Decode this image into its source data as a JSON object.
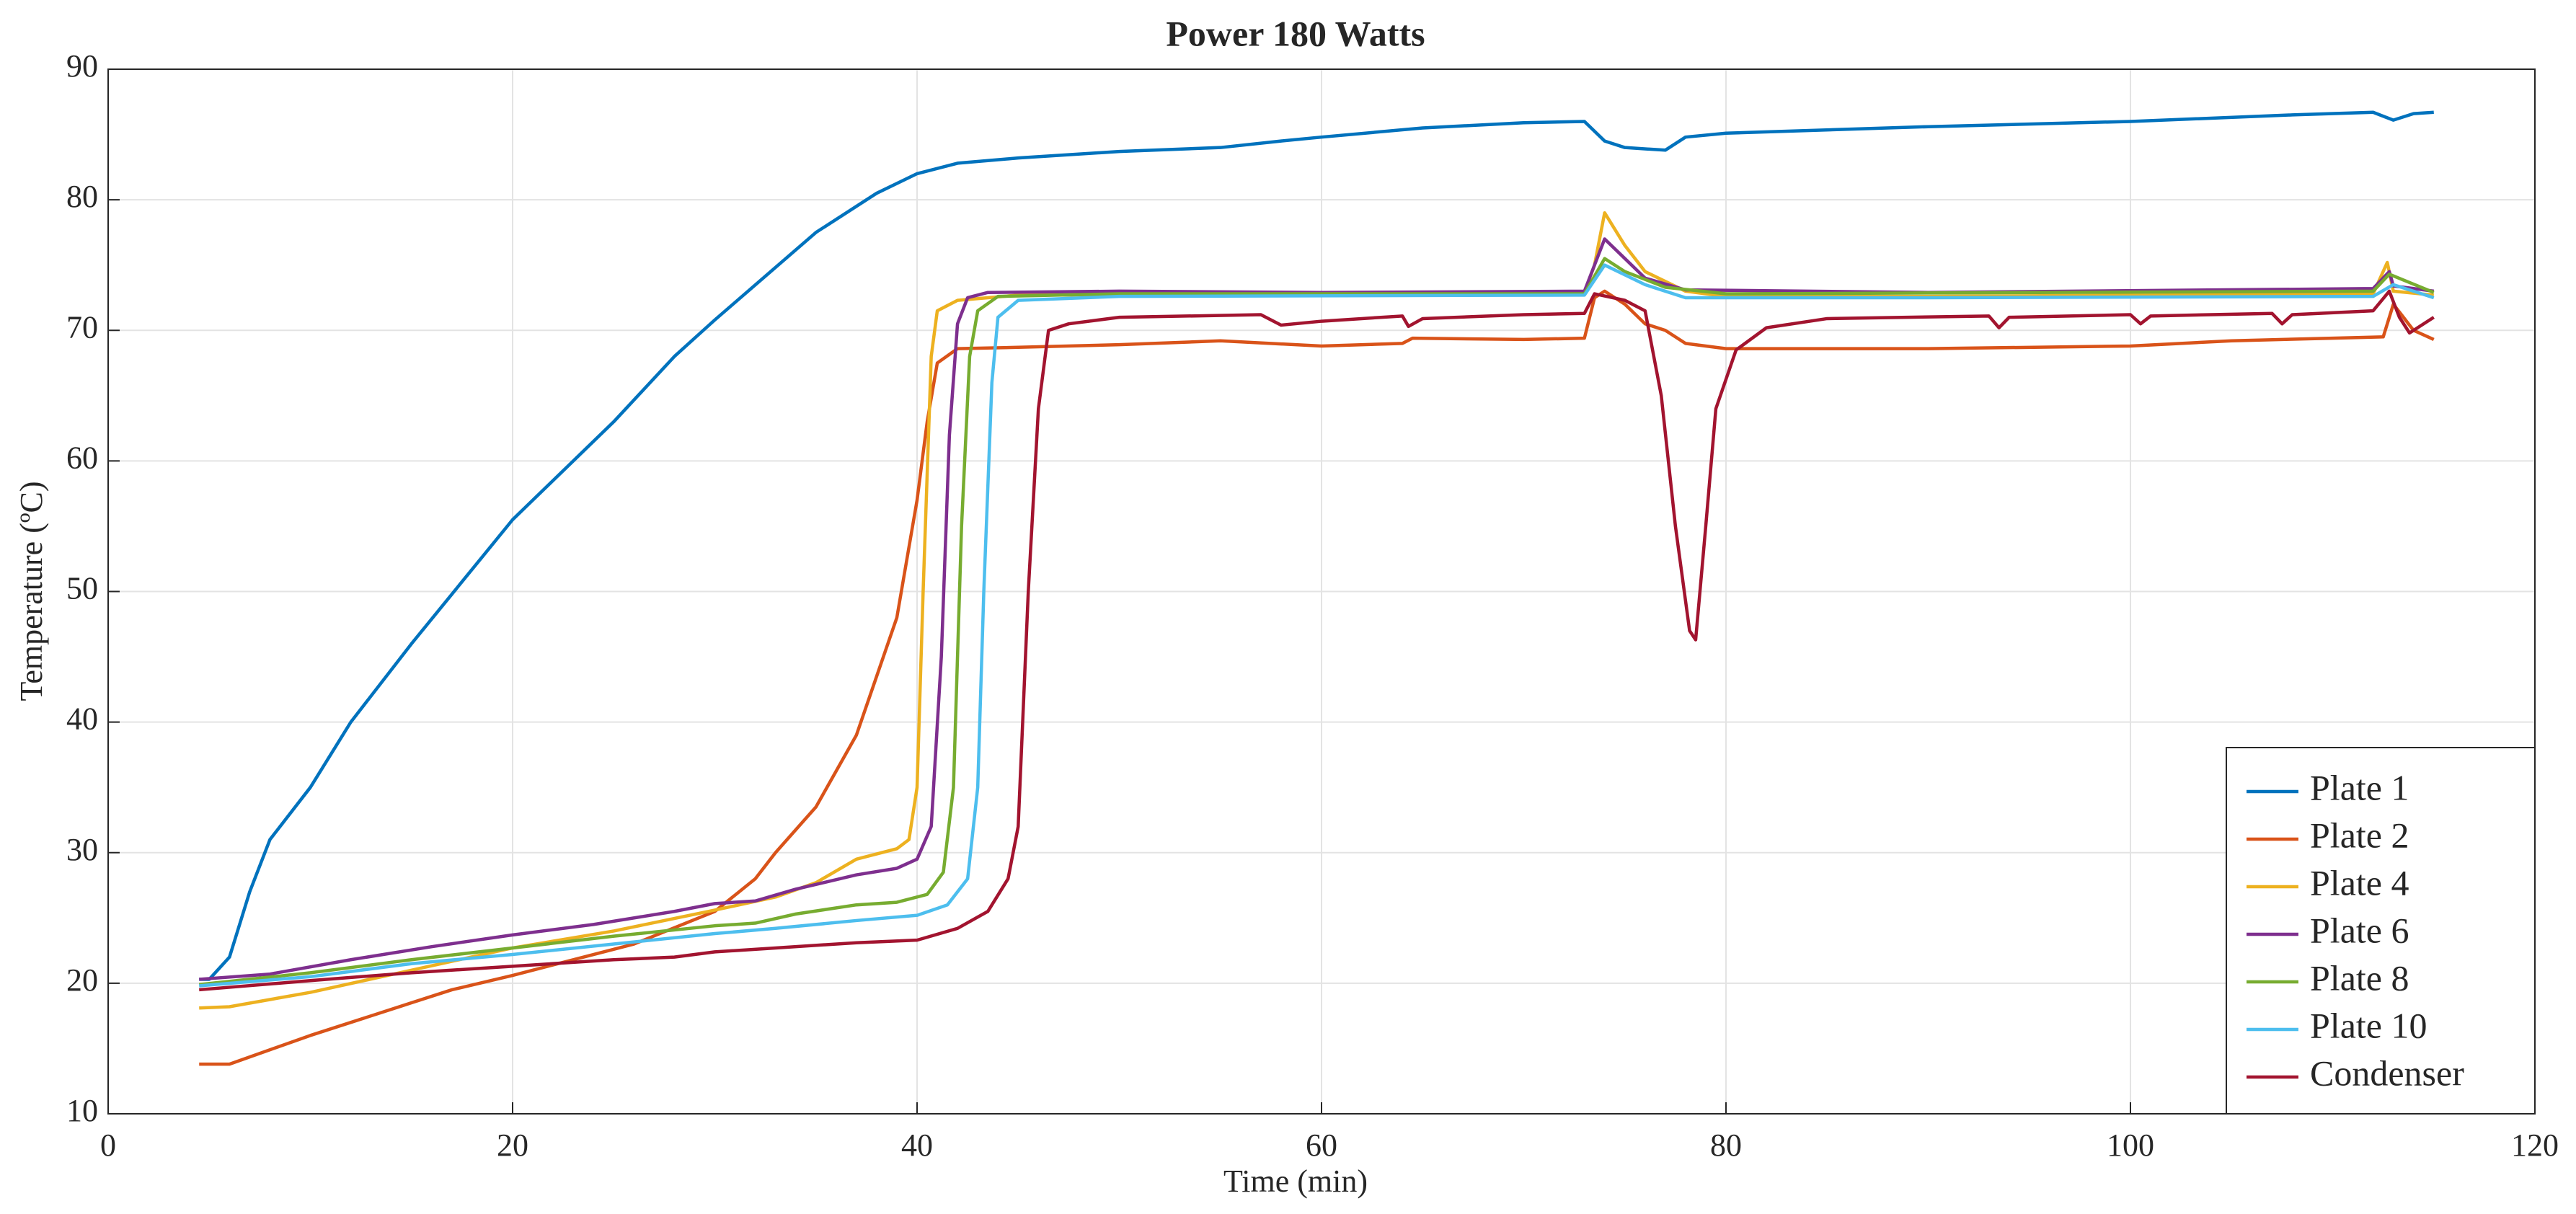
{
  "chart_data": {
    "type": "line",
    "title": "Power 180 Watts",
    "x_label": "Time (min)",
    "y_label": "Temperature (ºC)",
    "xlim": [
      0,
      120
    ],
    "xticks": [
      0,
      20,
      40,
      60,
      80,
      100,
      120
    ],
    "ylim": [
      10,
      90
    ],
    "yticks": [
      10,
      20,
      30,
      40,
      50,
      60,
      70,
      80,
      90
    ],
    "grid": true,
    "legend": "lower right",
    "series": [
      {
        "name": "Plate 1",
        "color": "#0072bd",
        "x": [
          4.5,
          5,
          6,
          7,
          8,
          10,
          12,
          15,
          20,
          25,
          28,
          30,
          35,
          38,
          40,
          42,
          45,
          50,
          55,
          58,
          60,
          65,
          70,
          73,
          74,
          75,
          77,
          78,
          80,
          90,
          100,
          108,
          112,
          113,
          114,
          115
        ],
        "values": [
          20.3,
          20.3,
          22,
          27,
          31,
          35,
          40,
          46,
          55.5,
          63,
          68,
          70.8,
          77.5,
          80.5,
          82,
          82.8,
          83.2,
          83.7,
          84,
          84.5,
          84.8,
          85.5,
          85.9,
          86,
          84.5,
          84,
          83.8,
          84.8,
          85.1,
          85.6,
          86,
          86.5,
          86.7,
          86.1,
          86.6,
          86.7
        ]
      },
      {
        "name": "Plate 2",
        "color": "#d95319",
        "x": [
          4.5,
          6,
          10,
          15,
          17,
          20,
          23,
          26,
          30,
          32,
          33,
          35,
          37,
          38,
          39,
          40,
          40.5,
          41,
          42,
          45,
          50,
          55,
          60,
          64,
          64.5,
          70,
          73,
          73.5,
          74,
          75,
          76,
          77,
          78,
          80,
          90,
          100,
          105,
          110,
          112.5,
          113,
          114,
          115
        ],
        "values": [
          13.8,
          13.8,
          16,
          18.5,
          19.5,
          20.6,
          21.8,
          23,
          25.5,
          28,
          30,
          33.5,
          39,
          43.5,
          48,
          57,
          63,
          67.5,
          68.6,
          68.7,
          68.9,
          69.2,
          68.8,
          69,
          69.4,
          69.3,
          69.4,
          72.5,
          73,
          72,
          70.5,
          70,
          69,
          68.6,
          68.6,
          68.8,
          69.2,
          69.4,
          69.5,
          72,
          70,
          69.3
        ]
      },
      {
        "name": "Plate 4",
        "color": "#edb120",
        "x": [
          4.5,
          6,
          10,
          15,
          20,
          25,
          30,
          33,
          35,
          37,
          39,
          39.6,
          40,
          40.3,
          40.7,
          41,
          42,
          45,
          60,
          73,
          73.5,
          74,
          75,
          76,
          78,
          80,
          90,
          112,
          112.7,
          113,
          115
        ],
        "values": [
          18.1,
          18.2,
          19.3,
          21,
          22.7,
          24,
          25.6,
          26.6,
          27.7,
          29.5,
          30.3,
          31,
          35,
          50,
          68,
          71.5,
          72.3,
          72.7,
          72.8,
          72.9,
          75,
          79,
          76.5,
          74.5,
          73,
          72.6,
          72.6,
          72.8,
          75.2,
          73,
          72.7
        ]
      },
      {
        "name": "Plate 6",
        "color": "#7e2f8e",
        "x": [
          4.5,
          8,
          12,
          16,
          20,
          24,
          28,
          30,
          32,
          34,
          37,
          39,
          40,
          40.7,
          41.2,
          41.6,
          42,
          42.5,
          43.5,
          50,
          60,
          73,
          74,
          75,
          76,
          78,
          90,
          112,
          112.8,
          113,
          115
        ],
        "values": [
          20.3,
          20.7,
          21.8,
          22.8,
          23.7,
          24.5,
          25.5,
          26.1,
          26.3,
          27.2,
          28.3,
          28.8,
          29.5,
          32,
          45,
          62,
          70.5,
          72.5,
          72.9,
          73,
          72.9,
          73,
          77,
          75.5,
          74,
          73.1,
          72.9,
          73.2,
          74.5,
          73.4,
          73
        ]
      },
      {
        "name": "Plate 8",
        "color": "#77ac30",
        "x": [
          4.5,
          10,
          15,
          20,
          25,
          30,
          32,
          34,
          37,
          39,
          40.5,
          41.3,
          41.8,
          42.2,
          42.6,
          43,
          44,
          50,
          73,
          74,
          75,
          77,
          80,
          112,
          112.8,
          115
        ],
        "values": [
          19.9,
          20.8,
          21.8,
          22.7,
          23.6,
          24.4,
          24.6,
          25.3,
          26,
          26.2,
          26.8,
          28.5,
          35,
          55,
          68,
          71.5,
          72.6,
          72.8,
          72.8,
          75.5,
          74.5,
          73.3,
          72.8,
          73,
          74.3,
          72.9
        ]
      },
      {
        "name": "Plate 10",
        "color": "#4dbeee",
        "x": [
          4.5,
          10,
          15,
          20,
          25,
          30,
          33,
          37,
          40,
          41.5,
          42.5,
          43,
          43.3,
          43.7,
          44,
          45,
          50,
          73,
          74,
          76,
          78,
          90,
          112,
          113,
          115
        ],
        "values": [
          19.8,
          20.5,
          21.5,
          22.2,
          23,
          23.8,
          24.2,
          24.8,
          25.2,
          26,
          28,
          35,
          50,
          66,
          71,
          72.3,
          72.6,
          72.7,
          75,
          73.5,
          72.5,
          72.5,
          72.6,
          73.5,
          72.5
        ]
      },
      {
        "name": "Condenser",
        "color": "#a2142f",
        "x": [
          4.5,
          10,
          15,
          20,
          25,
          28,
          30,
          33,
          37,
          40,
          42,
          43.5,
          44.5,
          45,
          45.5,
          46,
          46.5,
          47.5,
          50,
          57,
          58,
          60,
          64,
          64.3,
          65,
          70,
          73,
          73.5,
          75,
          76,
          76.8,
          77.5,
          78.2,
          78.5,
          79,
          79.5,
          80.5,
          82,
          85,
          93,
          93.5,
          94,
          100,
          100.5,
          101,
          107,
          107.5,
          108,
          112,
          112.8,
          113.3,
          113.8,
          115
        ],
        "values": [
          19.5,
          20.2,
          20.8,
          21.3,
          21.8,
          22,
          22.4,
          22.7,
          23.1,
          23.3,
          24.2,
          25.5,
          28,
          32,
          50,
          64,
          70,
          70.5,
          71,
          71.2,
          70.4,
          70.7,
          71.1,
          70.3,
          70.9,
          71.2,
          71.3,
          72.8,
          72.3,
          71.5,
          65,
          55,
          47,
          46.3,
          55,
          64,
          68.5,
          70.2,
          70.9,
          71.1,
          70.2,
          71,
          71.2,
          70.5,
          71.1,
          71.3,
          70.5,
          71.2,
          71.5,
          73,
          71,
          69.8,
          71
        ]
      }
    ]
  }
}
